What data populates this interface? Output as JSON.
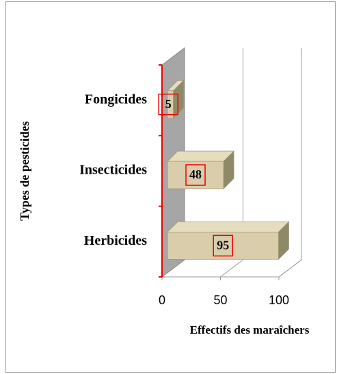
{
  "chart_data": {
    "type": "bar",
    "orientation": "horizontal",
    "categories": [
      "Herbicides",
      "Insecticides",
      "Fongicides"
    ],
    "values": [
      95,
      48,
      5
    ],
    "xlabel": "Effectifs des maraîchers",
    "ylabel": "Types de pesticides",
    "xlim": [
      0,
      100
    ],
    "xticks": [
      0,
      50,
      100
    ],
    "grid": true,
    "color": "#d9cdab"
  }
}
